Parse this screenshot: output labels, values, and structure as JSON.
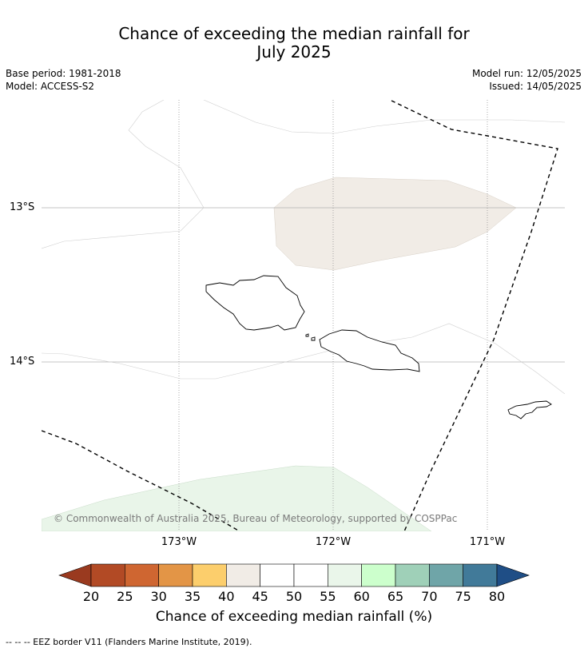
{
  "title_line1": "Chance of exceeding the median rainfall for",
  "title_line2": "July 2025",
  "base_period": "Base period: 1981-2018",
  "model": "Model: ACCESS-S2",
  "model_run": "Model run: 12/05/2025",
  "issued": "Issued: 14/05/2025",
  "map": {
    "lat_labels": [
      "13°S",
      "14°S"
    ],
    "lon_labels": [
      "173°W",
      "172°W",
      "171°W"
    ],
    "copyright": "© Commonwealth of Australia 2025, Bureau of Meteorology, supported by COSPPac",
    "shaded_regions": [
      {
        "category": "40-45",
        "color": "#f1ece6"
      },
      {
        "category": "55-60",
        "color": "#e9f5e9"
      }
    ]
  },
  "colorbar": {
    "title": "Chance of exceeding median rainfall (%)",
    "ticks": [
      "20",
      "25",
      "30",
      "35",
      "40",
      "45",
      "50",
      "55",
      "60",
      "65",
      "70",
      "75",
      "80"
    ],
    "low_extend_color": "#9a3a1f",
    "high_extend_color": "#1f4e86",
    "colors": [
      "#b24a25",
      "#cf6631",
      "#e39546",
      "#fcce6c",
      "#f1ece6",
      "#ffffff",
      "#ffffff",
      "#eaf6ea",
      "#ccffcc",
      "#9fd0b8",
      "#6fa5a8",
      "#417a99"
    ]
  },
  "footer": "--  --  -- EEZ border V11 (Flanders Marine Institute, 2019)."
}
